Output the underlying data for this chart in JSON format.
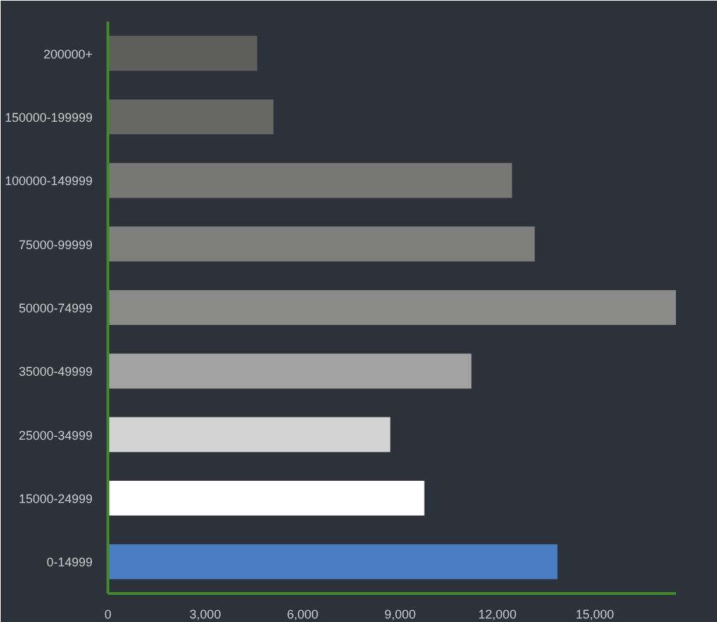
{
  "chart_data": {
    "type": "bar",
    "orientation": "horizontal",
    "categories": [
      "200000+",
      "150000-199999",
      "100000-149999",
      "75000-99999",
      "50000-74999",
      "35000-49999",
      "25000-34999",
      "15000-24999",
      "0-14999"
    ],
    "values": [
      4600,
      5100,
      12450,
      13150,
      17500,
      11200,
      8700,
      9750,
      13850
    ],
    "colors": [
      "#5e5e5c",
      "#666664",
      "#777776",
      "#7f7f7e",
      "#8a8a89",
      "#a2a2a2",
      "#d2d2d2",
      "#ffffff",
      "#4a7cc4"
    ],
    "xlim": [
      0,
      17500
    ],
    "xticks": [
      0,
      {
        "value": 3000,
        "label": "3,000"
      },
      {
        "value": 6000,
        "label": "6,000"
      },
      {
        "value": 9000,
        "label": "9,000"
      },
      {
        "value": 12000,
        "label": "12,000"
      },
      {
        "value": 15000,
        "label": "15,000"
      }
    ],
    "grid": false
  }
}
